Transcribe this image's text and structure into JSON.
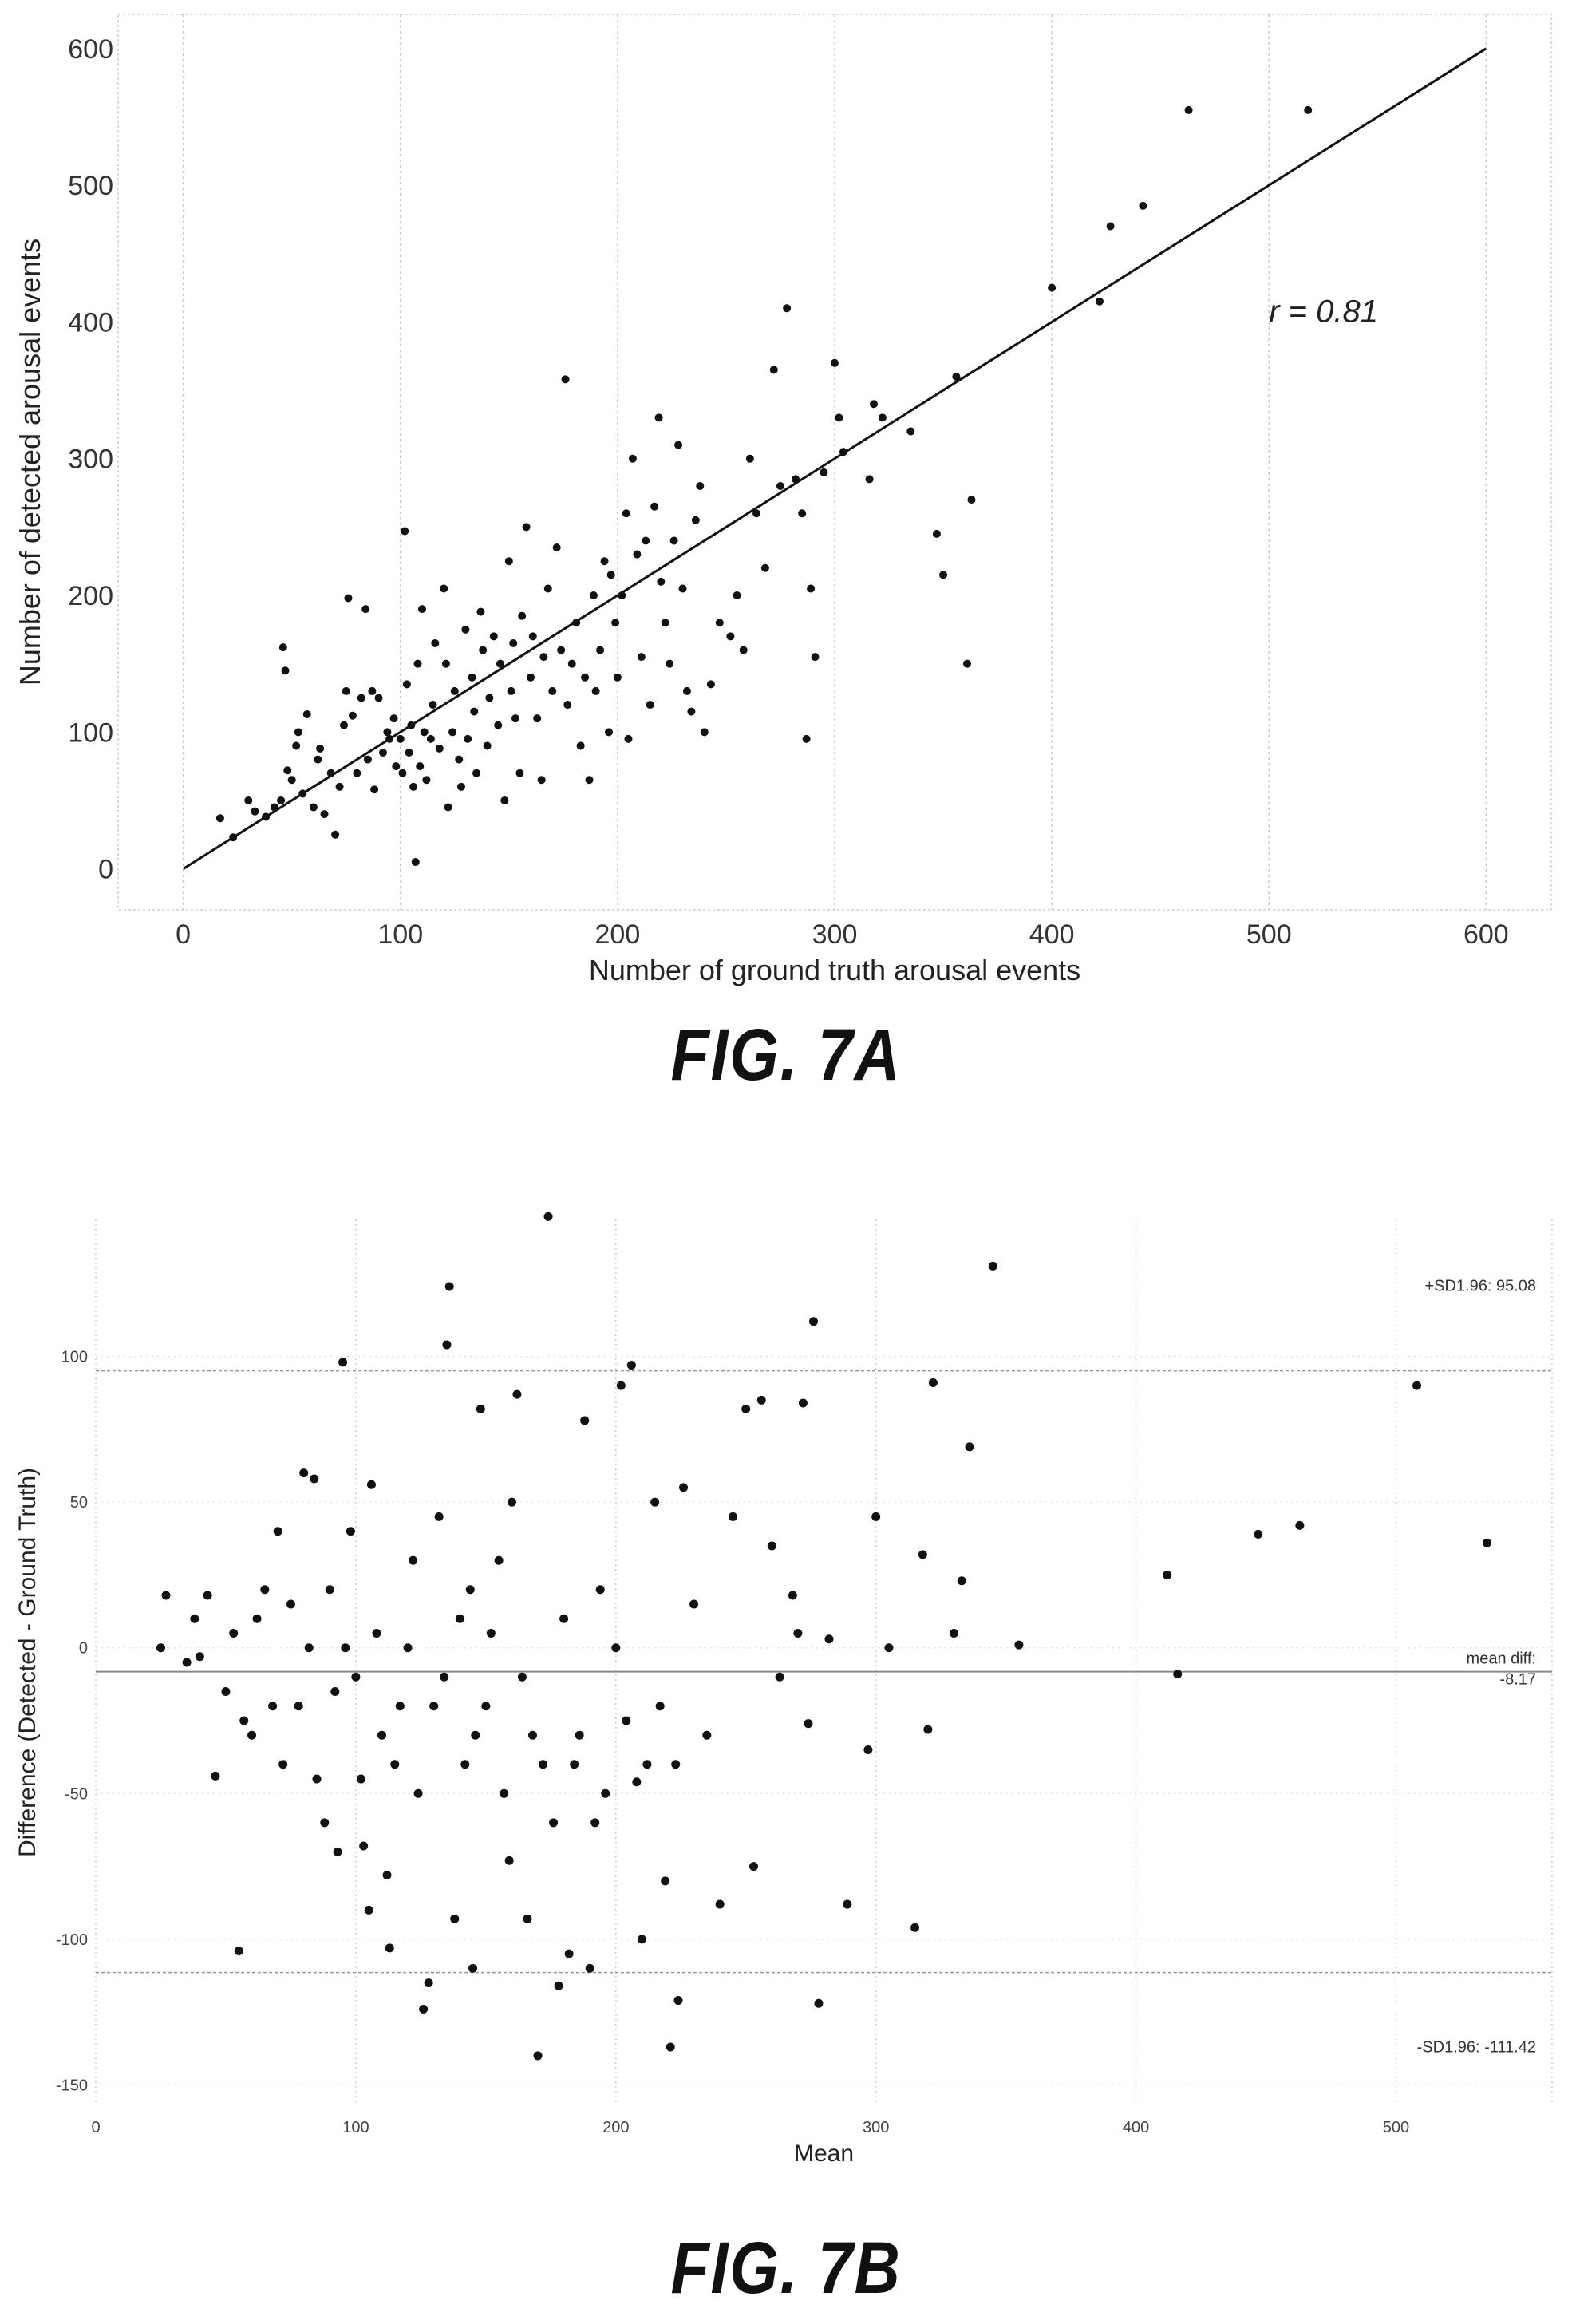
{
  "chart_data": [
    {
      "type": "scatter",
      "figure_label": "FIG. 7A",
      "xlabel": "Number of ground truth arousal events",
      "ylabel": "Number of detected arousal events",
      "xlim": [
        -30,
        630
      ],
      "ylim": [
        -30,
        625
      ],
      "x_ticks": [
        0,
        100,
        200,
        300,
        400,
        500,
        600
      ],
      "y_ticks": [
        0,
        100,
        200,
        300,
        400,
        500,
        600
      ],
      "grid": "vertical",
      "annotation": "r = 0.81",
      "annotation_pos": [
        500,
        400
      ],
      "fit_line": {
        "x": [
          0,
          600
        ],
        "y": [
          0,
          600
        ]
      },
      "points": [
        [
          17,
          37
        ],
        [
          23,
          23
        ],
        [
          30,
          50
        ],
        [
          33,
          42
        ],
        [
          38,
          38
        ],
        [
          42,
          45
        ],
        [
          45,
          50
        ],
        [
          46,
          162
        ],
        [
          47,
          145
        ],
        [
          48,
          72
        ],
        [
          50,
          65
        ],
        [
          52,
          90
        ],
        [
          53,
          100
        ],
        [
          55,
          55
        ],
        [
          57,
          113
        ],
        [
          60,
          45
        ],
        [
          62,
          80
        ],
        [
          63,
          88
        ],
        [
          65,
          40
        ],
        [
          68,
          70
        ],
        [
          70,
          25
        ],
        [
          72,
          60
        ],
        [
          74,
          105
        ],
        [
          75,
          130
        ],
        [
          76,
          198
        ],
        [
          78,
          112
        ],
        [
          80,
          70
        ],
        [
          82,
          125
        ],
        [
          84,
          190
        ],
        [
          85,
          80
        ],
        [
          87,
          130
        ],
        [
          88,
          58
        ],
        [
          90,
          125
        ],
        [
          92,
          85
        ],
        [
          94,
          100
        ],
        [
          95,
          95
        ],
        [
          97,
          110
        ],
        [
          98,
          75
        ],
        [
          100,
          95
        ],
        [
          101,
          70
        ],
        [
          102,
          247
        ],
        [
          103,
          135
        ],
        [
          104,
          85
        ],
        [
          105,
          105
        ],
        [
          106,
          60
        ],
        [
          107,
          5
        ],
        [
          108,
          150
        ],
        [
          109,
          75
        ],
        [
          110,
          190
        ],
        [
          111,
          100
        ],
        [
          112,
          65
        ],
        [
          114,
          95
        ],
        [
          115,
          120
        ],
        [
          116,
          165
        ],
        [
          118,
          88
        ],
        [
          120,
          205
        ],
        [
          121,
          150
        ],
        [
          122,
          45
        ],
        [
          124,
          100
        ],
        [
          125,
          130
        ],
        [
          127,
          80
        ],
        [
          128,
          60
        ],
        [
          130,
          175
        ],
        [
          131,
          95
        ],
        [
          133,
          140
        ],
        [
          134,
          115
        ],
        [
          135,
          70
        ],
        [
          137,
          188
        ],
        [
          138,
          160
        ],
        [
          140,
          90
        ],
        [
          141,
          125
        ],
        [
          143,
          170
        ],
        [
          145,
          105
        ],
        [
          146,
          150
        ],
        [
          148,
          50
        ],
        [
          150,
          225
        ],
        [
          151,
          130
        ],
        [
          152,
          165
        ],
        [
          153,
          110
        ],
        [
          155,
          70
        ],
        [
          156,
          185
        ],
        [
          158,
          250
        ],
        [
          160,
          140
        ],
        [
          161,
          170
        ],
        [
          163,
          110
        ],
        [
          165,
          65
        ],
        [
          166,
          155
        ],
        [
          168,
          205
        ],
        [
          170,
          130
        ],
        [
          172,
          235
        ],
        [
          174,
          160
        ],
        [
          176,
          358
        ],
        [
          177,
          120
        ],
        [
          179,
          150
        ],
        [
          181,
          180
        ],
        [
          183,
          90
        ],
        [
          185,
          140
        ],
        [
          187,
          65
        ],
        [
          189,
          200
        ],
        [
          190,
          130
        ],
        [
          192,
          160
        ],
        [
          194,
          225
        ],
        [
          196,
          100
        ],
        [
          197,
          215
        ],
        [
          199,
          180
        ],
        [
          200,
          140
        ],
        [
          202,
          200
        ],
        [
          204,
          260
        ],
        [
          205,
          95
        ],
        [
          207,
          300
        ],
        [
          209,
          230
        ],
        [
          211,
          155
        ],
        [
          213,
          240
        ],
        [
          215,
          120
        ],
        [
          217,
          265
        ],
        [
          219,
          330
        ],
        [
          220,
          210
        ],
        [
          222,
          180
        ],
        [
          224,
          150
        ],
        [
          226,
          240
        ],
        [
          228,
          310
        ],
        [
          230,
          205
        ],
        [
          232,
          130
        ],
        [
          234,
          115
        ],
        [
          236,
          255
        ],
        [
          238,
          280
        ],
        [
          240,
          100
        ],
        [
          243,
          135
        ],
        [
          247,
          180
        ],
        [
          252,
          170
        ],
        [
          255,
          200
        ],
        [
          258,
          160
        ],
        [
          261,
          300
        ],
        [
          264,
          260
        ],
        [
          268,
          220
        ],
        [
          272,
          365
        ],
        [
          275,
          280
        ],
        [
          278,
          410
        ],
        [
          282,
          285
        ],
        [
          285,
          260
        ],
        [
          287,
          95
        ],
        [
          289,
          205
        ],
        [
          291,
          155
        ],
        [
          295,
          290
        ],
        [
          300,
          370
        ],
        [
          302,
          330
        ],
        [
          304,
          305
        ],
        [
          316,
          285
        ],
        [
          318,
          340
        ],
        [
          322,
          330
        ],
        [
          335,
          320
        ],
        [
          347,
          245
        ],
        [
          350,
          215
        ],
        [
          356,
          360
        ],
        [
          361,
          150
        ],
        [
          363,
          270
        ],
        [
          400,
          425
        ],
        [
          422,
          415
        ],
        [
          427,
          470
        ],
        [
          442,
          485
        ],
        [
          463,
          555
        ],
        [
          518,
          555
        ]
      ]
    },
    {
      "type": "scatter",
      "figure_label": "FIG. 7B",
      "xlabel": "Mean",
      "ylabel": "Difference (Detected - Ground Truth)",
      "xlim": [
        0,
        560
      ],
      "ylim": [
        -157,
        147
      ],
      "x_ticks": [
        0,
        100,
        200,
        300,
        400,
        500
      ],
      "y_ticks": [
        -150,
        -100,
        -50,
        0,
        50,
        100
      ],
      "grid": "both-dotted",
      "reference_lines": [
        {
          "label_line1": "+SD1.96: 95.08",
          "label_line2": "",
          "value": 95.08
        },
        {
          "label_line1": "mean diff:",
          "label_line2": "-8.17",
          "value": -8.17
        },
        {
          "label_line1": "-SD1.96: -111.42",
          "label_line2": "",
          "value": -111.42
        }
      ],
      "points": [
        [
          25,
          0
        ],
        [
          27,
          18
        ],
        [
          35,
          -5
        ],
        [
          38,
          10
        ],
        [
          40,
          -3
        ],
        [
          43,
          18
        ],
        [
          46,
          -44
        ],
        [
          50,
          -15
        ],
        [
          53,
          5
        ],
        [
          55,
          -104
        ],
        [
          57,
          -25
        ],
        [
          60,
          -30
        ],
        [
          62,
          10
        ],
        [
          65,
          20
        ],
        [
          68,
          -20
        ],
        [
          70,
          40
        ],
        [
          72,
          -40
        ],
        [
          75,
          15
        ],
        [
          78,
          -20
        ],
        [
          80,
          60
        ],
        [
          82,
          0
        ],
        [
          84,
          58
        ],
        [
          85,
          -45
        ],
        [
          88,
          -60
        ],
        [
          90,
          20
        ],
        [
          92,
          -15
        ],
        [
          93,
          -70
        ],
        [
          95,
          98
        ],
        [
          96,
          0
        ],
        [
          98,
          40
        ],
        [
          100,
          -10
        ],
        [
          102,
          -45
        ],
        [
          103,
          -68
        ],
        [
          105,
          -90
        ],
        [
          106,
          56
        ],
        [
          108,
          5
        ],
        [
          110,
          -30
        ],
        [
          112,
          -78
        ],
        [
          113,
          -103
        ],
        [
          115,
          -40
        ],
        [
          117,
          -20
        ],
        [
          120,
          0
        ],
        [
          122,
          30
        ],
        [
          124,
          -50
        ],
        [
          126,
          -124
        ],
        [
          128,
          -115
        ],
        [
          130,
          -20
        ],
        [
          132,
          45
        ],
        [
          134,
          -10
        ],
        [
          135,
          104
        ],
        [
          136,
          124
        ],
        [
          138,
          -93
        ],
        [
          140,
          10
        ],
        [
          142,
          -40
        ],
        [
          144,
          20
        ],
        [
          145,
          -110
        ],
        [
          146,
          -30
        ],
        [
          148,
          82
        ],
        [
          150,
          -20
        ],
        [
          152,
          5
        ],
        [
          155,
          30
        ],
        [
          157,
          -50
        ],
        [
          159,
          -73
        ],
        [
          160,
          50
        ],
        [
          162,
          87
        ],
        [
          164,
          -10
        ],
        [
          166,
          -93
        ],
        [
          168,
          -30
        ],
        [
          170,
          -140
        ],
        [
          172,
          -40
        ],
        [
          174,
          148
        ],
        [
          176,
          -60
        ],
        [
          178,
          -116
        ],
        [
          180,
          10
        ],
        [
          182,
          -105
        ],
        [
          184,
          -40
        ],
        [
          186,
          -30
        ],
        [
          188,
          78
        ],
        [
          190,
          -110
        ],
        [
          192,
          -60
        ],
        [
          194,
          20
        ],
        [
          196,
          -50
        ],
        [
          200,
          0
        ],
        [
          202,
          90
        ],
        [
          204,
          -25
        ],
        [
          206,
          97
        ],
        [
          208,
          -46
        ],
        [
          210,
          -100
        ],
        [
          212,
          -40
        ],
        [
          215,
          50
        ],
        [
          217,
          -20
        ],
        [
          219,
          -80
        ],
        [
          221,
          -137
        ],
        [
          223,
          -40
        ],
        [
          224,
          -121
        ],
        [
          226,
          55
        ],
        [
          230,
          15
        ],
        [
          235,
          -30
        ],
        [
          240,
          -88
        ],
        [
          245,
          45
        ],
        [
          250,
          82
        ],
        [
          253,
          -75
        ],
        [
          256,
          85
        ],
        [
          260,
          35
        ],
        [
          263,
          -10
        ],
        [
          268,
          18
        ],
        [
          270,
          5
        ],
        [
          272,
          84
        ],
        [
          274,
          -26
        ],
        [
          276,
          112
        ],
        [
          278,
          -122
        ],
        [
          282,
          3
        ],
        [
          289,
          -88
        ],
        [
          297,
          -35
        ],
        [
          300,
          45
        ],
        [
          305,
          0
        ],
        [
          315,
          -96
        ],
        [
          318,
          32
        ],
        [
          320,
          -28
        ],
        [
          322,
          91
        ],
        [
          330,
          5
        ],
        [
          333,
          23
        ],
        [
          336,
          69
        ],
        [
          345,
          131
        ],
        [
          355,
          1
        ],
        [
          412,
          25
        ],
        [
          416,
          -9
        ],
        [
          447,
          39
        ],
        [
          463,
          42
        ],
        [
          508,
          90
        ],
        [
          535,
          36
        ]
      ]
    }
  ]
}
